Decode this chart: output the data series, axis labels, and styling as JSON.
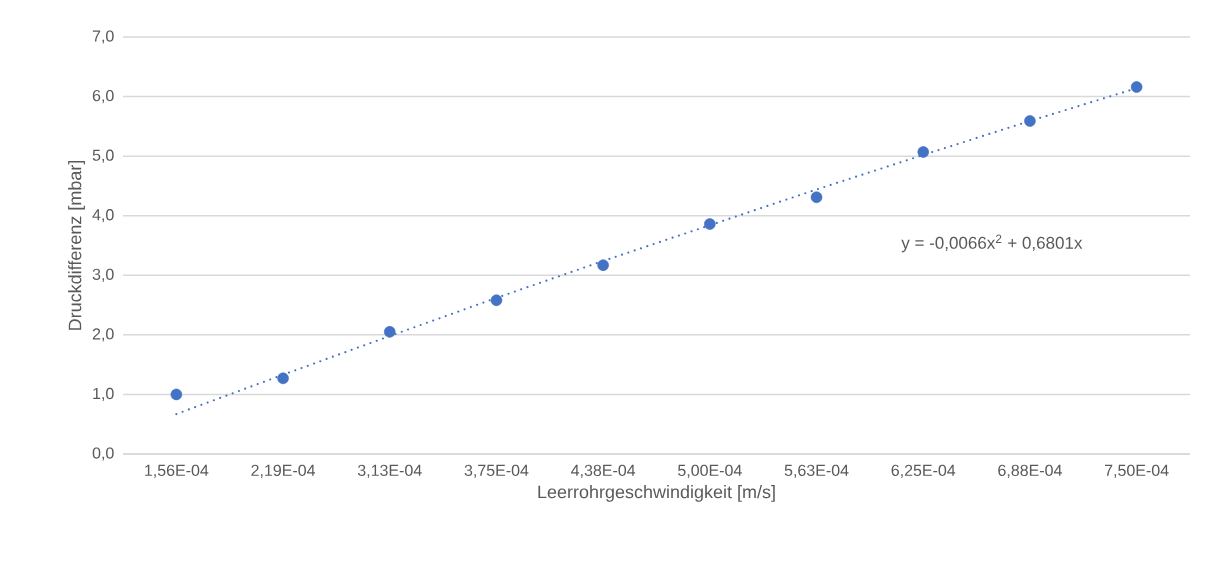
{
  "chart_data": {
    "type": "scatter",
    "xlabel": "Leerrohrgeschwindigkeit [m/s]",
    "ylabel": "Druckdifferenz [mbar]",
    "categories": [
      "1,56E-04",
      "2,19E-04",
      "3,13E-04",
      "3,75E-04",
      "4,38E-04",
      "5,00E-04",
      "5,63E-04",
      "6,25E-04",
      "6,88E-04",
      "7,50E-04"
    ],
    "series": [
      {
        "color": "#4472c4",
        "marker": "circle",
        "values": [
          1.0,
          1.27,
          2.05,
          2.58,
          3.17,
          3.86,
          4.31,
          5.07,
          5.59,
          6.16
        ]
      },
      {
        "type": "line",
        "color": "#4472c4",
        "marker": "none",
        "line_style": "dotted",
        "values": [
          0.67,
          1.33,
          1.98,
          2.62,
          3.24,
          3.84,
          4.44,
          5.02,
          5.59,
          6.14
        ]
      }
    ],
    "ylim": [
      0,
      7
    ],
    "yticks": [
      {
        "value": 0,
        "label": "0,0"
      },
      {
        "value": 1,
        "label": "1,0"
      },
      {
        "value": 2,
        "label": "2,0"
      },
      {
        "value": 3,
        "label": "3,0"
      },
      {
        "value": 4,
        "label": "4,0"
      },
      {
        "value": 5,
        "label": "5,0"
      },
      {
        "value": 6,
        "label": "6,0"
      },
      {
        "value": 7,
        "label": "7,0"
      }
    ],
    "grid": "y",
    "annotations": [
      "y = -0,0066x$^{2}$ + 0,6801x"
    ]
  }
}
